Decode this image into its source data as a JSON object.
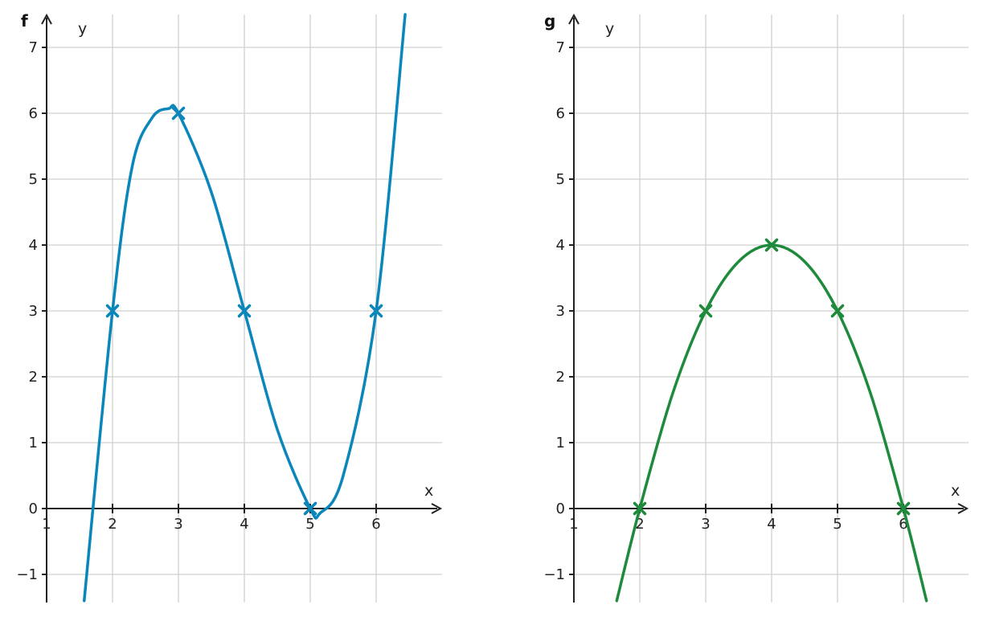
{
  "chart_data": [
    {
      "type": "line",
      "function_name": "f",
      "xlabel": "x",
      "ylabel": "y",
      "xlim": [
        1,
        7
      ],
      "ylim": [
        -1.4,
        7.5
      ],
      "x_ticks": [
        1,
        2,
        3,
        4,
        5,
        6
      ],
      "y_ticks": [
        -1,
        0,
        1,
        2,
        3,
        4,
        5,
        6,
        7
      ],
      "x_tick_labels": [
        "1",
        "2",
        "3",
        "4",
        "5",
        "6"
      ],
      "y_tick_labels": [
        "−1",
        "0",
        "1",
        "2",
        "3",
        "4",
        "5",
        "6",
        "7"
      ],
      "grid": true,
      "color": "#0a86bb",
      "curve_description": "cubic through (2,3),(3,6),(4,3),(5,0),(6,3); local max near (2.85,6.07), local min near (5.15,-0.07)",
      "series": [
        {
          "points": [
            {
              "x": 1.57,
              "y": -1.4
            },
            {
              "x": 2,
              "y": 3
            },
            {
              "x": 2.3,
              "y": 5.2
            },
            {
              "x": 2.6,
              "y": 5.93
            },
            {
              "x": 2.85,
              "y": 6.07
            },
            {
              "x": 3,
              "y": 6
            },
            {
              "x": 3.5,
              "y": 4.8
            },
            {
              "x": 4,
              "y": 3
            },
            {
              "x": 4.5,
              "y": 1.2
            },
            {
              "x": 5,
              "y": 0
            },
            {
              "x": 5.15,
              "y": -0.07
            },
            {
              "x": 5.5,
              "y": 0.5
            },
            {
              "x": 6,
              "y": 3
            },
            {
              "x": 6.44,
              "y": 7.5
            }
          ]
        }
      ],
      "marked_points": [
        {
          "x": 2,
          "y": 3
        },
        {
          "x": 3,
          "y": 6
        },
        {
          "x": 4,
          "y": 3
        },
        {
          "x": 5,
          "y": 0
        },
        {
          "x": 6,
          "y": 3
        }
      ]
    },
    {
      "type": "line",
      "function_name": "g",
      "xlabel": "x",
      "ylabel": "y",
      "xlim": [
        1,
        7
      ],
      "ylim": [
        -1.4,
        7.5
      ],
      "x_ticks": [
        1,
        2,
        3,
        4,
        5,
        6
      ],
      "y_ticks": [
        -1,
        0,
        1,
        2,
        3,
        4,
        5,
        6,
        7
      ],
      "x_tick_labels": [
        "1",
        "2",
        "3",
        "4",
        "5",
        "6"
      ],
      "y_tick_labels": [
        "−1",
        "0",
        "1",
        "2",
        "3",
        "4",
        "5",
        "6",
        "7"
      ],
      "grid": true,
      "color": "#1e8a3c",
      "curve_description": "parabola through (2,0),(3,3),(4,4),(5,3),(6,0); vertex at (4,4)",
      "series": [
        {
          "points": [
            {
              "x": 1.65,
              "y": -1.4
            },
            {
              "x": 2,
              "y": 0
            },
            {
              "x": 2.5,
              "y": 1.75
            },
            {
              "x": 3,
              "y": 3
            },
            {
              "x": 3.5,
              "y": 3.75
            },
            {
              "x": 4,
              "y": 4
            },
            {
              "x": 4.5,
              "y": 3.75
            },
            {
              "x": 5,
              "y": 3
            },
            {
              "x": 5.5,
              "y": 1.75
            },
            {
              "x": 6,
              "y": 0
            },
            {
              "x": 6.35,
              "y": -1.4
            }
          ]
        }
      ],
      "marked_points": [
        {
          "x": 2,
          "y": 0
        },
        {
          "x": 3,
          "y": 3
        },
        {
          "x": 4,
          "y": 4
        },
        {
          "x": 5,
          "y": 3
        },
        {
          "x": 6,
          "y": 0
        }
      ]
    }
  ]
}
